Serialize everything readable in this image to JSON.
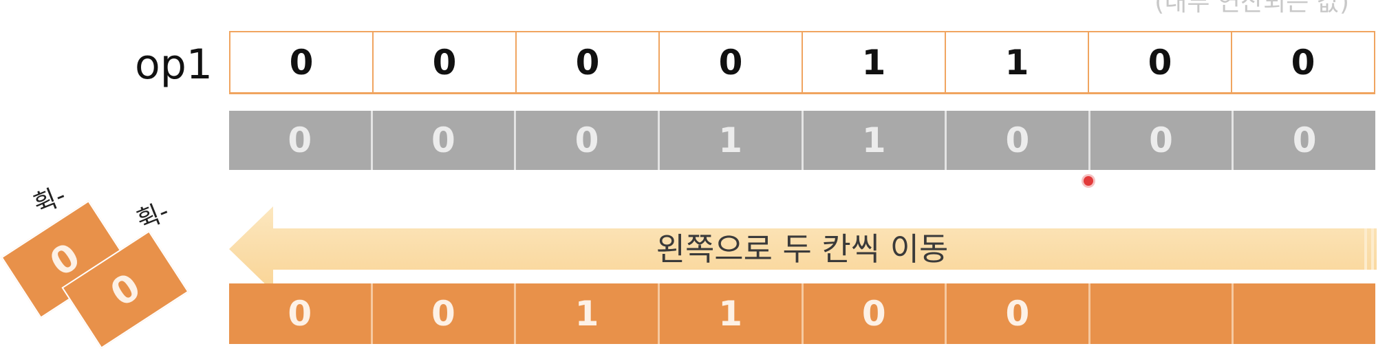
{
  "top_note": "(내부 연산되는 값)",
  "operand": {
    "label": "op1",
    "bits": [
      "0",
      "0",
      "0",
      "0",
      "1",
      "1",
      "0",
      "0"
    ]
  },
  "intermediate": {
    "bits": [
      "0",
      "0",
      "0",
      "1",
      "1",
      "0",
      "0",
      "0"
    ]
  },
  "shift_arrow": {
    "label": "왼쪽으로 두 칸씩 이동"
  },
  "result": {
    "bits": [
      "0",
      "0",
      "1",
      "1",
      "0",
      "0",
      "",
      ""
    ]
  },
  "discarded": {
    "bits": [
      "0",
      "0"
    ],
    "sound_effect": "휙-"
  },
  "colors": {
    "op1_border": "#f0a45f",
    "gray_row": "#a9a9a9",
    "arrow_fill": "#fbd99b",
    "orange_row": "#e8914a",
    "pointer": "#e23a3a"
  }
}
